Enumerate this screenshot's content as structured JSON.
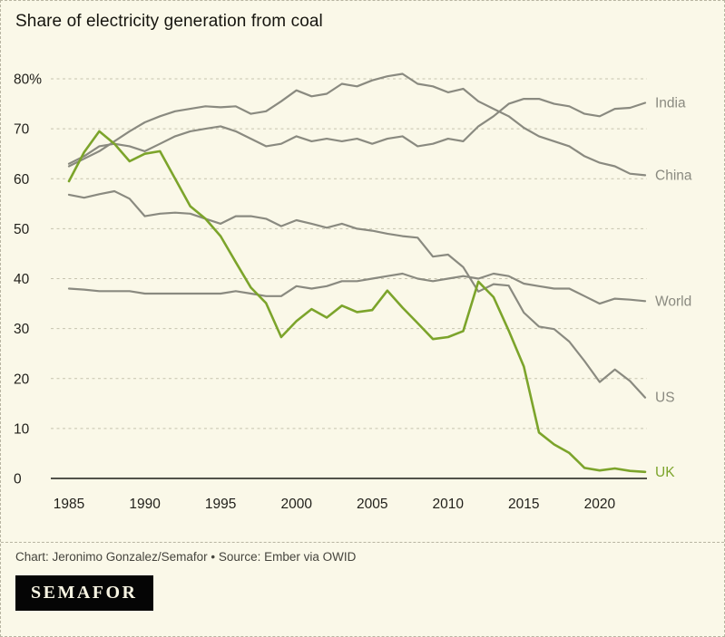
{
  "chart": {
    "title": "Share of electricity generation from coal"
  },
  "chart_data": {
    "type": "line",
    "title": "Share of electricity generation from coal",
    "xlabel": "",
    "ylabel": "",
    "ylim": [
      0,
      80
    ],
    "grid": "dashed-horizontal",
    "legend_position": "right-end-labels",
    "x": [
      1985,
      1986,
      1987,
      1988,
      1989,
      1990,
      1991,
      1992,
      1993,
      1994,
      1995,
      1996,
      1997,
      1998,
      1999,
      2000,
      2001,
      2002,
      2003,
      2004,
      2005,
      2006,
      2007,
      2008,
      2009,
      2010,
      2011,
      2012,
      2013,
      2014,
      2015,
      2016,
      2017,
      2018,
      2019,
      2020,
      2021,
      2022,
      2023
    ],
    "x_ticks": [
      1985,
      1990,
      1995,
      2000,
      2005,
      2010,
      2015,
      2020
    ],
    "y_ticks": [
      {
        "value": 0,
        "label": "0"
      },
      {
        "value": 10,
        "label": "10"
      },
      {
        "value": 20,
        "label": "20"
      },
      {
        "value": 30,
        "label": "30"
      },
      {
        "value": 40,
        "label": "40"
      },
      {
        "value": 50,
        "label": "50"
      },
      {
        "value": 60,
        "label": "60"
      },
      {
        "value": 70,
        "label": "70"
      },
      {
        "value": 80,
        "label": "80%"
      }
    ],
    "series": [
      {
        "name": "India",
        "color": "#8A8A80",
        "width": 2.2,
        "values": [
          63.0,
          64.5,
          66.5,
          67.0,
          66.5,
          65.5,
          67.0,
          68.5,
          69.5,
          70.0,
          70.5,
          69.5,
          68.0,
          66.5,
          67.0,
          68.5,
          67.5,
          68.0,
          67.5,
          68.0,
          67.0,
          68.0,
          68.5,
          66.5,
          67.0,
          68.0,
          67.5,
          70.5,
          72.5,
          75.0,
          76.0,
          76.0,
          75.0,
          74.5,
          73.0,
          72.5,
          74.0,
          74.2,
          75.2
        ]
      },
      {
        "name": "China",
        "color": "#8A8A80",
        "width": 2.2,
        "values": [
          62.5,
          64.0,
          65.5,
          67.5,
          69.5,
          71.3,
          72.5,
          73.5,
          74.0,
          74.5,
          74.3,
          74.5,
          73.0,
          73.5,
          75.5,
          77.7,
          76.5,
          77.0,
          79.0,
          78.5,
          79.7,
          80.5,
          81.0,
          79.0,
          78.5,
          77.3,
          78.0,
          75.5,
          74.0,
          72.5,
          70.2,
          68.5,
          67.5,
          66.5,
          64.5,
          63.2,
          62.5,
          61.0,
          60.7
        ]
      },
      {
        "name": "World",
        "color": "#8A8A80",
        "width": 2.2,
        "values": [
          38.0,
          37.8,
          37.5,
          37.5,
          37.5,
          37.0,
          37.0,
          37.0,
          37.0,
          37.0,
          37.0,
          37.5,
          37.0,
          36.5,
          36.5,
          38.5,
          38.0,
          38.5,
          39.5,
          39.5,
          40.0,
          40.5,
          41.0,
          40.0,
          39.5,
          40.0,
          40.5,
          40.0,
          41.0,
          40.5,
          39.0,
          38.5,
          38.0,
          38.0,
          36.5,
          35.0,
          36.0,
          35.8,
          35.5
        ]
      },
      {
        "name": "US",
        "color": "#8A8A80",
        "width": 2.2,
        "values": [
          56.8,
          56.2,
          56.9,
          57.5,
          56.0,
          52.5,
          53.0,
          53.2,
          53.0,
          52.0,
          51.0,
          52.5,
          52.5,
          52.0,
          50.5,
          51.7,
          51.0,
          50.2,
          51.0,
          50.0,
          49.6,
          49.0,
          48.5,
          48.2,
          44.4,
          44.8,
          42.3,
          37.4,
          38.9,
          38.6,
          33.2,
          30.4,
          29.9,
          27.4,
          23.5,
          19.3,
          21.8,
          19.5,
          16.2
        ]
      },
      {
        "name": "UK",
        "color": "#7CA42B",
        "width": 2.6,
        "values": [
          59.5,
          65.3,
          69.5,
          67.0,
          63.5,
          65.0,
          65.5,
          60.0,
          54.5,
          52.0,
          48.5,
          43.3,
          38.2,
          35.1,
          28.3,
          31.5,
          33.9,
          32.2,
          34.6,
          33.3,
          33.7,
          37.6,
          34.2,
          31.1,
          27.9,
          28.3,
          29.5,
          39.4,
          36.3,
          29.6,
          22.4,
          9.2,
          6.8,
          5.1,
          2.1,
          1.6,
          2.0,
          1.5,
          1.3
        ]
      }
    ]
  },
  "footer": {
    "caption": "Chart: Jeronimo Gonzalez/Semafor • Source: Ember via OWID",
    "logo": "SEMAFOR"
  },
  "colors": {
    "background": "#FAF8E8",
    "accent_green": "#7CA42B",
    "line_gray": "#8A8A80",
    "border_dash": "#B8B5A2",
    "text_dark": "#201F1A",
    "credit_text": "#45443D"
  }
}
